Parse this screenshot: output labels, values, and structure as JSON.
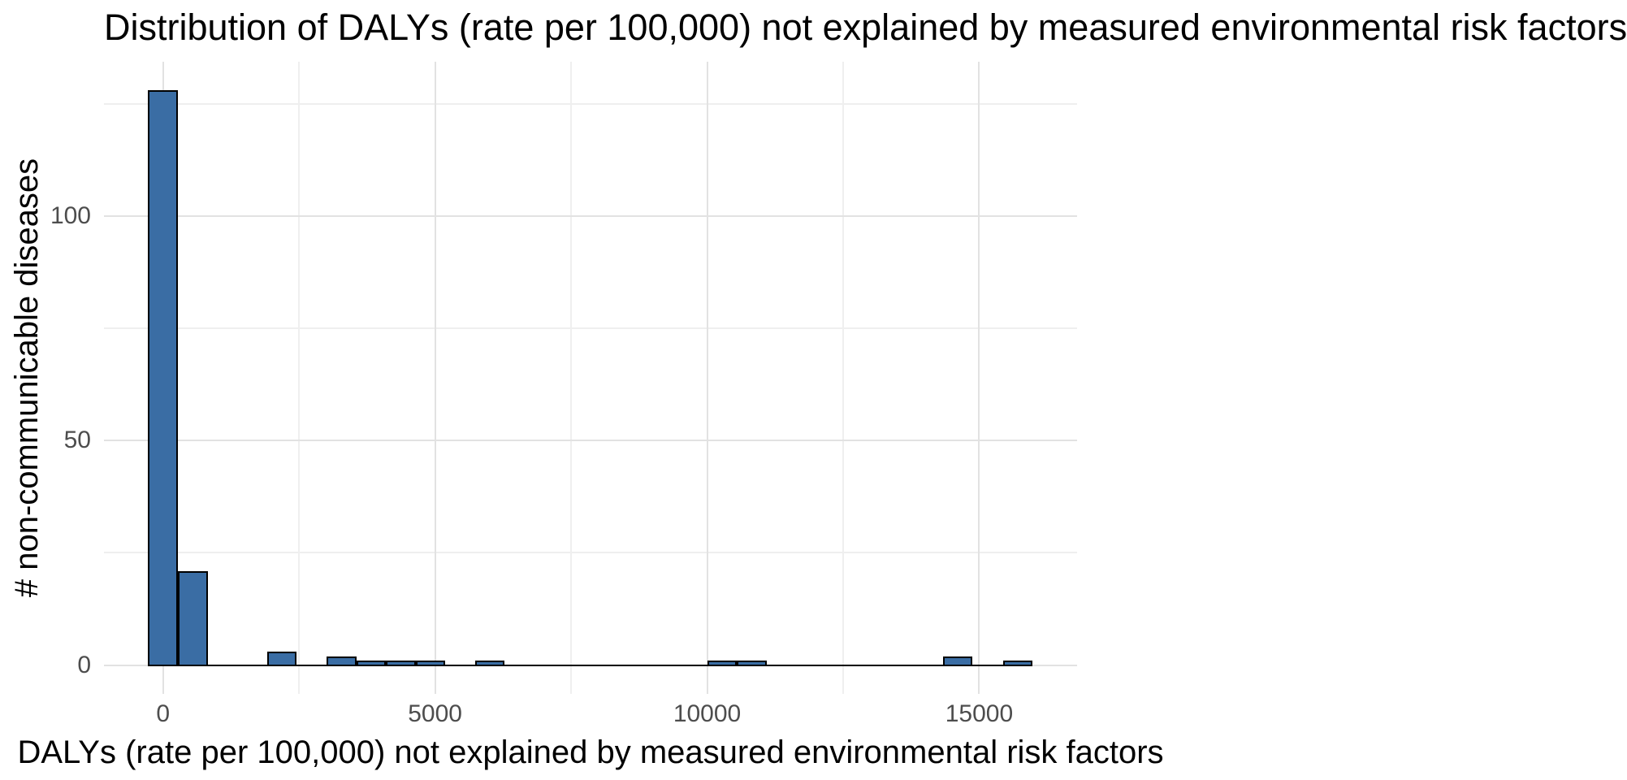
{
  "figure": {
    "title": "Distribution of DALYs (rate per 100,000) not explained by measured environmental risk factors",
    "x_axis_label": "DALYs (rate per 100,000) not explained by measured environmental risk factors",
    "y_axis_label": "# non-communicable diseases"
  },
  "chart_data": {
    "type": "bar",
    "subtype": "histogram",
    "title": "Distribution of DALYs (rate per 100,000) not explained by measured environmental risk factors",
    "xlabel": "DALYs (rate per 100,000) not explained by measured environmental risk factors",
    "ylabel": "# non-communicable diseases",
    "legend": "none",
    "grid": "on",
    "x_domain": [
      -1086,
      16800
    ],
    "y_domain": [
      -6.4,
      134.4
    ],
    "bin_width": 546,
    "bins": [
      {
        "x0": -273,
        "x1": 273,
        "count": 128
      },
      {
        "x0": 273,
        "x1": 819,
        "count": 21
      },
      {
        "x0": 1912,
        "x1": 2458,
        "count": 3
      },
      {
        "x0": 3004,
        "x1": 3550,
        "count": 2
      },
      {
        "x0": 3550,
        "x1": 4096,
        "count": 1
      },
      {
        "x0": 4096,
        "x1": 4642,
        "count": 1
      },
      {
        "x0": 4642,
        "x1": 5188,
        "count": 1
      },
      {
        "x0": 5734,
        "x1": 6280,
        "count": 1
      },
      {
        "x0": 10000,
        "x1": 10546,
        "count": 1
      },
      {
        "x0": 10546,
        "x1": 11092,
        "count": 1
      },
      {
        "x0": 14330,
        "x1": 14876,
        "count": 2
      },
      {
        "x0": 15440,
        "x1": 15986,
        "count": 1
      }
    ],
    "baseline_extent": [
      -273,
      15986
    ],
    "x_ticks": [
      {
        "value": 0,
        "label": "0"
      },
      {
        "value": 5000,
        "label": "5000"
      },
      {
        "value": 10000,
        "label": "10000"
      },
      {
        "value": 15000,
        "label": "15000"
      }
    ],
    "y_ticks": [
      {
        "value": 0,
        "label": "0"
      },
      {
        "value": 50,
        "label": "50"
      },
      {
        "value": 100,
        "label": "100"
      }
    ],
    "x_minor_gridlines": [
      2500,
      7500,
      12500
    ],
    "y_minor_gridlines": [
      25,
      75,
      125
    ],
    "colors": {
      "bar_fill": "#3A6DA4",
      "bar_stroke": "#000000",
      "grid_major": "#E2E2E2",
      "grid_minor": "#EFEFEF",
      "tick_label": "#4D4D4D",
      "text": "#000000",
      "background": "#FFFFFF"
    }
  }
}
